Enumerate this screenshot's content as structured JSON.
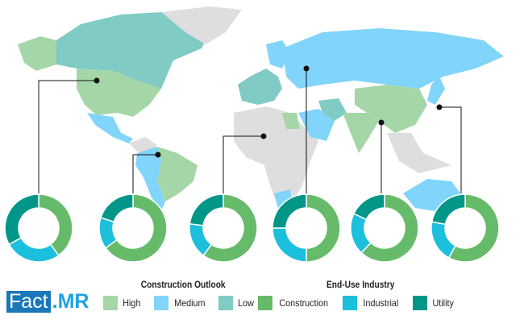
{
  "brand": {
    "part1": "Fact",
    "part2": ".MR"
  },
  "colors": {
    "high": "#a5d6a7",
    "medium": "#81d4fa",
    "low": "#80cbc4",
    "other": "#dedede",
    "construction": "#66bb6a",
    "industrial": "#1cbfdc",
    "utility": "#009688"
  },
  "legend_outlook": {
    "title": "Construction Outlook",
    "items": [
      {
        "label": "High",
        "color": "#a5d6a7"
      },
      {
        "label": "Medium",
        "color": "#81d4fa"
      },
      {
        "label": "Low",
        "color": "#80cbc4"
      }
    ]
  },
  "legend_industry": {
    "title": "End-Use Industry",
    "items": [
      {
        "label": "Construction",
        "color": "#66bb6a"
      },
      {
        "label": "Industrial",
        "color": "#1cbfdc"
      },
      {
        "label": "Utility",
        "color": "#009688"
      }
    ]
  },
  "chart_data": {
    "type": "pie",
    "donut": true,
    "categories": [
      "Construction",
      "Industrial",
      "Utility"
    ],
    "series": [
      {
        "values": [
          40,
          27,
          33
        ]
      },
      {
        "values": [
          65,
          15,
          20
        ]
      },
      {
        "values": [
          60,
          17,
          23
        ]
      },
      {
        "values": [
          50,
          25,
          25
        ]
      },
      {
        "values": [
          62,
          20,
          18
        ]
      },
      {
        "values": [
          58,
          20,
          22
        ]
      }
    ]
  }
}
